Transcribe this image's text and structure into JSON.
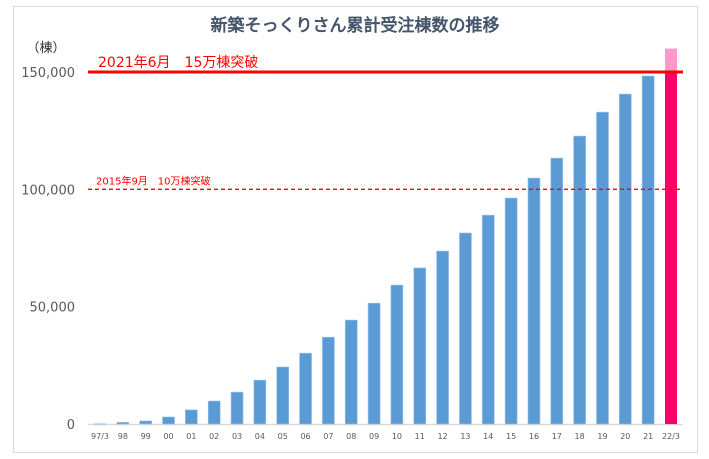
{
  "chart_data": {
    "type": "bar",
    "title": "新築そっくりさん累計受注棟数の推移",
    "ylabel": "（棟）",
    "xlabel": "",
    "ylim": [
      0,
      160000
    ],
    "yticks": [
      0,
      50000,
      100000,
      150000
    ],
    "ytick_labels": [
      "0",
      "50,000",
      "100,000",
      "150,000"
    ],
    "grid": false,
    "categories": [
      "97/3",
      "98",
      "99",
      "00",
      "01",
      "02",
      "03",
      "04",
      "05",
      "06",
      "07",
      "08",
      "09",
      "10",
      "11",
      "12",
      "13",
      "14",
      "15",
      "16",
      "17",
      "18",
      "19",
      "20",
      "21",
      "22/3"
    ],
    "values": [
      100,
      700,
      1300,
      3000,
      6000,
      9800,
      13600,
      18700,
      24300,
      30200,
      37000,
      44300,
      51500,
      59200,
      66500,
      73700,
      81400,
      89000,
      96300,
      104800,
      113300,
      122700,
      132900,
      140600,
      148300,
      160000
    ],
    "annotations": [
      {
        "label": "2021年6月　15万棟突破",
        "y": 150000,
        "style": "solid"
      },
      {
        "label": "2015年9月　10万棟突破",
        "y": 100000,
        "style": "dashed"
      }
    ],
    "colors": {
      "bar": "#5b9bd5",
      "highlight_bar": "#ff0066",
      "highlight_excess": "#ff99cc",
      "milestone": "#ff0000"
    }
  }
}
